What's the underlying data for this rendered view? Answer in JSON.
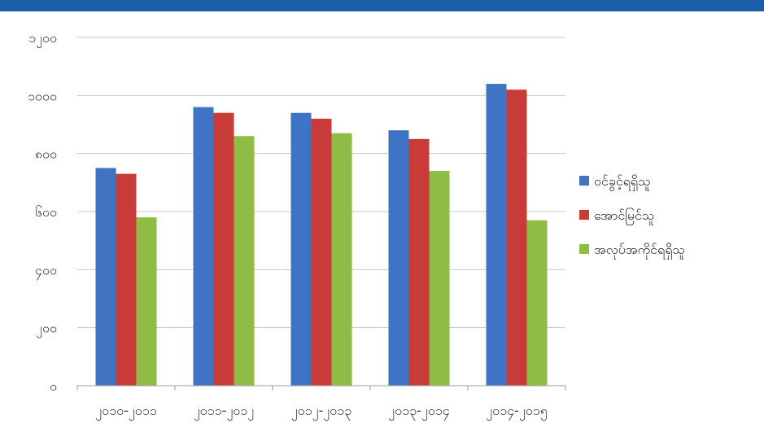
{
  "colors": {
    "top_bar": "#1a5ea8",
    "gridline": "#c9c9c9",
    "axis": "#9e9e9e",
    "tick_text": "#333333",
    "legend_text": "#222222"
  },
  "chart_data": {
    "type": "bar",
    "title": "",
    "xlabel": "",
    "ylabel": "",
    "categories": [
      "၂၀၁၀-၂၀၁၁",
      "၂၀၁၁-၂၀၁၂",
      "၂၀၁၂-၂၀၁၃",
      "၂၀၁၃-၂၀၁၄",
      "၂၀၁၄-၂၀၁၅"
    ],
    "series": [
      {
        "name": "ဝင်ခွင့်ရရှိသူ",
        "color": "#3f74c5",
        "values": [
          750,
          960,
          940,
          880,
          1040
        ]
      },
      {
        "name": "အောင်မြင်သူ",
        "color": "#c83b39",
        "values": [
          730,
          940,
          920,
          850,
          1020
        ]
      },
      {
        "name": "အလုပ်အကိုင်ရရှိသူ",
        "color": "#8fbc45",
        "values": [
          580,
          860,
          870,
          740,
          570
        ]
      }
    ],
    "ylim": [
      0,
      1200
    ],
    "yticks": [
      0,
      200,
      400,
      600,
      800,
      1000,
      1200
    ],
    "ytick_labels": [
      "၀",
      "၂၀၀",
      "၄၀၀",
      "၆၀၀",
      "၈၀၀",
      "၁၀၀၀",
      "၁၂၀၀"
    ],
    "grid": true,
    "legend_position": "right"
  }
}
